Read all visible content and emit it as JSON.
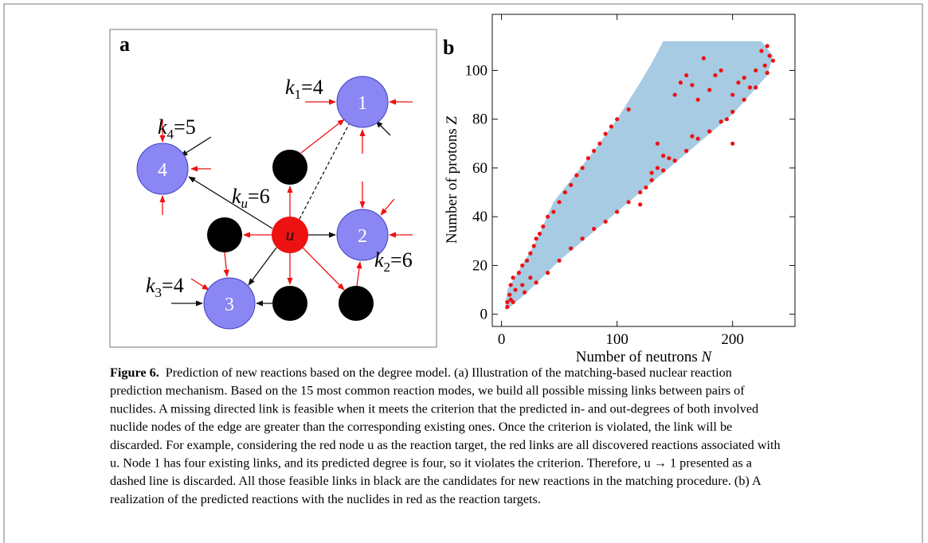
{
  "panel_a": {
    "label": "a",
    "nodes": [
      {
        "label": "1"
      },
      {
        "label": "2"
      },
      {
        "label": "3"
      },
      {
        "label": "4"
      },
      {
        "label": "u"
      }
    ],
    "degree_labels": [
      {
        "base": "k",
        "sub": "1",
        "rest": "=4"
      },
      {
        "base": "k",
        "sub": "2",
        "rest": "=6"
      },
      {
        "base": "k",
        "sub": "3",
        "rest": "=4"
      },
      {
        "base": "k",
        "sub": "4",
        "rest": "=5"
      },
      {
        "base": "k",
        "sub": "u",
        "rest": "=6"
      }
    ]
  },
  "chart_data": {
    "type": "scatter",
    "panel_label": "b",
    "x_label": "Number of neutrons",
    "x_label_symbol": "N",
    "y_label": "Number of protons",
    "y_label_symbol": "Z",
    "xlim": [
      -8,
      254
    ],
    "ylim": [
      -5,
      123
    ],
    "xticks": [
      0,
      100,
      200
    ],
    "yticks": [
      0,
      20,
      40,
      60,
      80,
      100
    ],
    "region": {
      "color": "#a6cbe3",
      "x": [
        3,
        5,
        15,
        30,
        45,
        60,
        80,
        100,
        120,
        130,
        140,
        225,
        235,
        230,
        200,
        170,
        140,
        110,
        80,
        50,
        20,
        5
      ],
      "y": [
        2,
        10,
        18,
        30,
        46,
        55,
        67,
        80,
        95,
        103,
        112,
        112,
        106,
        98,
        82,
        70,
        58,
        46,
        34,
        22,
        8,
        2
      ]
    },
    "series": [
      {
        "color": "#ee1111",
        "x": [
          5,
          7,
          8,
          10,
          15,
          18,
          22,
          25,
          28,
          30,
          33,
          36,
          40,
          45,
          50,
          55,
          60,
          65,
          70,
          75,
          80,
          85,
          90,
          95,
          100,
          110,
          10,
          20,
          30,
          40,
          50,
          60,
          70,
          80,
          90,
          100,
          110,
          120,
          130,
          140,
          150,
          160,
          170,
          180,
          190,
          200,
          210,
          220,
          230,
          235,
          200,
          205,
          210,
          215,
          225,
          230,
          232,
          228,
          220,
          130,
          135,
          125,
          150,
          155,
          160,
          165,
          170,
          180,
          185,
          175,
          190,
          195,
          200,
          140,
          120,
          135,
          145,
          165,
          5,
          8,
          12,
          18,
          25
        ],
        "values": [
          5,
          8,
          12,
          15,
          17,
          20,
          22,
          25,
          28,
          31,
          33,
          36,
          40,
          42,
          46,
          50,
          53,
          57,
          60,
          64,
          67,
          70,
          74,
          77,
          80,
          84,
          5,
          9,
          13,
          17,
          22,
          27,
          31,
          35,
          38,
          42,
          46,
          50,
          55,
          59,
          63,
          67,
          72,
          75,
          79,
          83,
          88,
          93,
          99,
          104,
          90,
          95,
          97,
          93,
          108,
          110,
          106,
          102,
          100,
          58,
          60,
          52,
          90,
          95,
          98,
          94,
          88,
          92,
          98,
          105,
          100,
          80,
          70,
          65,
          45,
          70,
          64,
          73,
          3,
          6,
          10,
          12,
          15
        ]
      }
    ]
  },
  "caption": {
    "label": "Figure 6.",
    "lines": [
      "Prediction of new reactions based on the degree model. (a) Illustration of the matching-based nuclear reaction",
      "prediction mechanism. Based on the 15 most common reaction modes, we build all possible missing links between pairs of",
      "nuclides. A missing directed link is feasible when it meets the criterion that the predicted in- and out-degrees of both involved",
      "nuclide nodes of the edge are greater than the corresponding existing ones. Once the criterion is violated, the link will be",
      "discarded. For example, considering the red node u as the reaction target, the red links are all discovered reactions associated with",
      "u. Node 1 has four existing links, and its predicted degree is four, so it violates the criterion. Therefore, u → 1 presented as a",
      "dashed line is discarded. All those feasible links in black are the candidates for new reactions in the matching procedure. (b) A",
      "realization of the predicted reactions with the nuclides in red as the reaction targets."
    ]
  }
}
